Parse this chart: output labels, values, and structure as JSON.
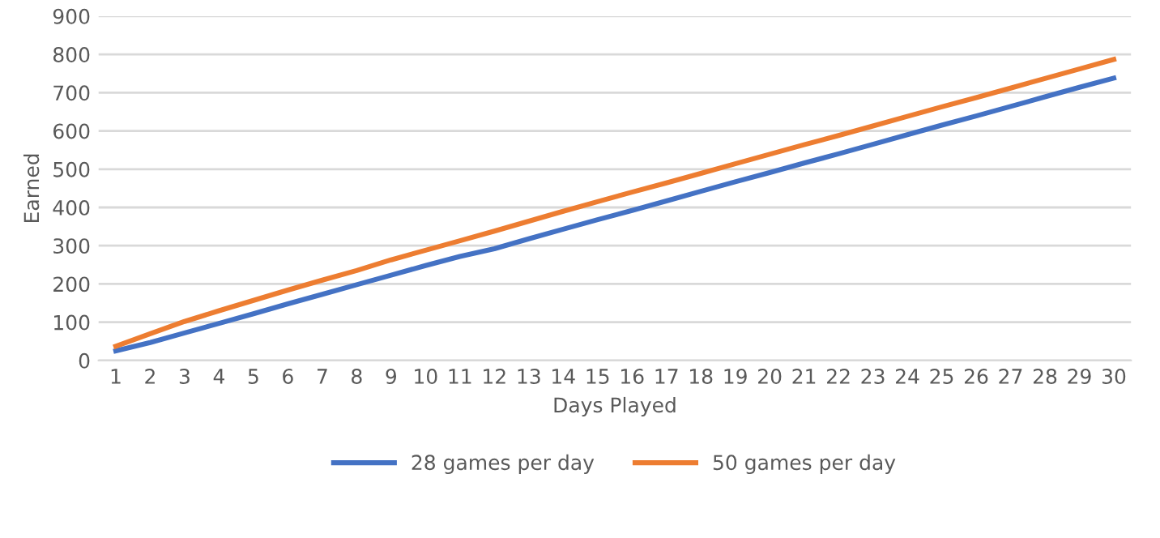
{
  "chart_data": {
    "type": "line",
    "xlabel": "Days Played",
    "ylabel": "Earned",
    "categories": [
      "1",
      "2",
      "3",
      "4",
      "5",
      "6",
      "7",
      "8",
      "9",
      "10",
      "11",
      "12",
      "13",
      "14",
      "15",
      "16",
      "17",
      "18",
      "19",
      "20",
      "21",
      "22",
      "23",
      "24",
      "25",
      "26",
      "27",
      "28",
      "29",
      "30"
    ],
    "series": [
      {
        "name": "28 games per day",
        "color": "#4472c4",
        "values": [
          25,
          47,
          72,
          97,
          122,
          148,
          173,
          198,
          223,
          248,
          272,
          292,
          318,
          343,
          368,
          392,
          417,
          442,
          467,
          491,
          516,
          540,
          565,
          590,
          615,
          639,
          664,
          689,
          714,
          738
        ]
      },
      {
        "name": "50 games per day",
        "color": "#ed7d31",
        "values": [
          37,
          70,
          102,
          130,
          157,
          184,
          210,
          235,
          263,
          288,
          313,
          338,
          364,
          390,
          415,
          440,
          464,
          489,
          514,
          539,
          564,
          588,
          613,
          638,
          663,
          687,
          712,
          737,
          762,
          787
        ]
      }
    ],
    "ylim": [
      0,
      900
    ],
    "yticks": [
      0,
      100,
      200,
      300,
      400,
      500,
      600,
      700,
      800,
      900
    ],
    "grid": "y",
    "legend": "bottom",
    "marker": "none",
    "line_style": "solid"
  }
}
